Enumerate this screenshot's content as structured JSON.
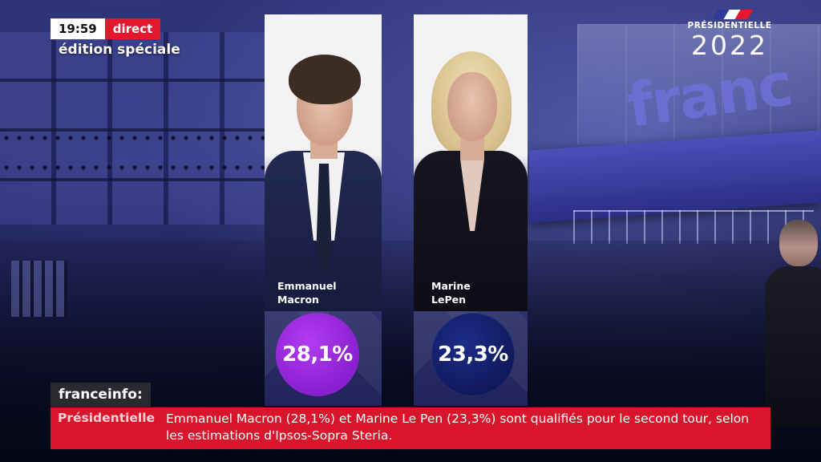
{
  "live": {
    "time": "19:59",
    "status": "direct",
    "edition": "édition spéciale"
  },
  "logo": {
    "title": "PRÉSIDENTIELLE",
    "year": "2022",
    "flag_colors": [
      "#2d3a9a",
      "#ffffff",
      "#e3182d"
    ]
  },
  "studio": {
    "brand_text": "franc"
  },
  "candidates": [
    {
      "first_name": "Emmanuel",
      "last_name": "Macron",
      "display_name": "Emmanuel\nMacron",
      "score": "28,1%",
      "color": "#9a2bdc"
    },
    {
      "first_name": "Marine",
      "last_name": "LePen",
      "display_name": "Marine\nLePen",
      "score": "23,3%",
      "color": "#13206a"
    }
  ],
  "lower_third": {
    "channel": "franceinfo:",
    "label": "Présidentielle",
    "headline": "Emmanuel Macron (28,1%) et Marine Le Pen (23,3%) sont qualifiés pour le second tour, selon les estimations d'Ipsos-Sopra Steria.",
    "accent": "#d8152a"
  }
}
